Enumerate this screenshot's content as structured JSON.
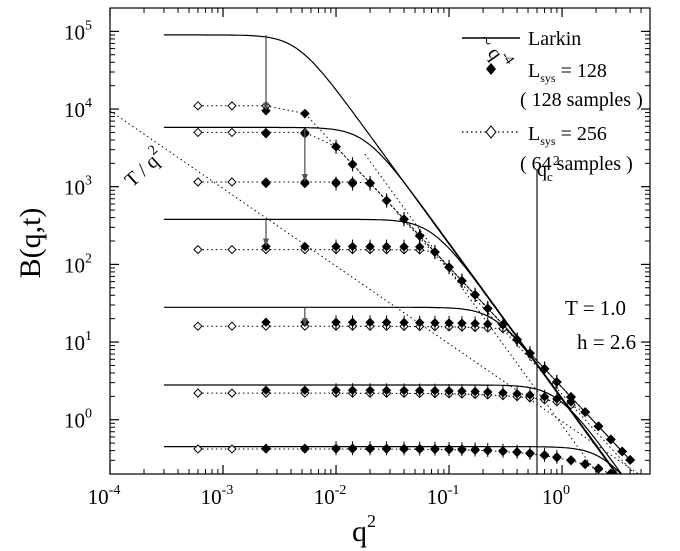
{
  "chart_data": {
    "type": "scatter",
    "xlabel": "q",
    "xlabel_sup": "2",
    "ylabel": "B(q,t)",
    "x_scale": "log",
    "y_scale": "log",
    "xlim": [
      0.0001,
      6
    ],
    "ylim": [
      0.2,
      200000
    ],
    "x_ticks": [
      {
        "value": 0.0001,
        "base": "10",
        "exp": "-4"
      },
      {
        "value": 0.001,
        "base": "10",
        "exp": "-3"
      },
      {
        "value": 0.01,
        "base": "10",
        "exp": "-2"
      },
      {
        "value": 0.1,
        "base": "10",
        "exp": "-1"
      },
      {
        "value": 1,
        "base": "10",
        "exp": "0"
      }
    ],
    "y_ticks": [
      {
        "value": 1,
        "base": "10",
        "exp": "0"
      },
      {
        "value": 10,
        "base": "10",
        "exp": "1"
      },
      {
        "value": 100,
        "base": "10",
        "exp": "2"
      },
      {
        "value": 1000,
        "base": "10",
        "exp": "3"
      },
      {
        "value": 10000,
        "base": "10",
        "exp": "4"
      },
      {
        "value": 100000,
        "base": "10",
        "exp": "5"
      }
    ],
    "legend": {
      "placement": "top-right",
      "entries": [
        {
          "text": "Larkin",
          "marker": "line"
        },
        {
          "text": "L",
          "sub": "sys",
          "suffix": " = 128",
          "note": "( 128 samples )",
          "marker": "filled-diamond"
        },
        {
          "text": "L",
          "sub": "sys",
          "suffix": " = 256",
          "note": "( 64 samples )",
          "marker": "open-diamond-dotted"
        }
      ]
    },
    "annotations": {
      "power_law": "~ q",
      "power_law_sup": "-4",
      "thermal": "T / q",
      "thermal_sup": "2",
      "qc": "q",
      "qc_sub": "c",
      "qc_sup": "2",
      "qc_value": 0.6,
      "temperature": "T = 1.0",
      "field": "h = 2.6"
    },
    "larkin_curves": [
      {
        "plateau": 90000,
        "qL2": 0.0045
      },
      {
        "plateau": 5800,
        "qL2": 0.018
      },
      {
        "plateau": 380,
        "qL2": 0.07
      },
      {
        "plateau": 28,
        "qL2": 0.26
      },
      {
        "plateau": 2.8,
        "qL2": 0.9
      },
      {
        "plateau": 0.45,
        "qL2": 2.4
      }
    ],
    "series": [
      {
        "name": "L_sys = 128",
        "marker": "filled",
        "branches": [
          {
            "plateau": 9500,
            "qstart": 0.0024
          },
          {
            "plateau": 4800,
            "qstart": 0.0024
          },
          {
            "plateau": 1100,
            "qstart": 0.0024
          },
          {
            "plateau": 170,
            "qstart": 0.0024
          },
          {
            "plateau": 18,
            "qstart": 0.0024
          },
          {
            "plateau": 2.4,
            "qstart": 0.0024
          },
          {
            "plateau": 0.43,
            "qstart": 0.0024
          }
        ]
      },
      {
        "name": "L_sys = 256",
        "marker": "open",
        "branches": [
          {
            "plateau": 11000,
            "qstart": 0.0006
          },
          {
            "plateau": 5000,
            "qstart": 0.0006
          },
          {
            "plateau": 1150,
            "qstart": 0.0006
          },
          {
            "plateau": 155,
            "qstart": 0.0006
          },
          {
            "plateau": 16,
            "qstart": 0.0006
          },
          {
            "plateau": 2.2,
            "qstart": 0.0006
          },
          {
            "plateau": 0.42,
            "qstart": 0.0006
          }
        ]
      }
    ],
    "arrows": [
      {
        "x": 0.0024,
        "y_from": 90000,
        "y_to": 9500
      },
      {
        "x": 0.0053,
        "y_from": 5500,
        "y_to": 1150
      },
      {
        "x": 0.0024,
        "y_from": 380,
        "y_to": 170
      },
      {
        "x": 0.0053,
        "y_from": 28,
        "y_to": 16
      }
    ],
    "lines": {
      "power_law_coefficient": 0.53,
      "thermal_coefficient": 0.95,
      "upper_dotted_start": 0.018,
      "thermal_dotted_start": 0.0001,
      "thermal_dotted_end": 5.5
    }
  }
}
